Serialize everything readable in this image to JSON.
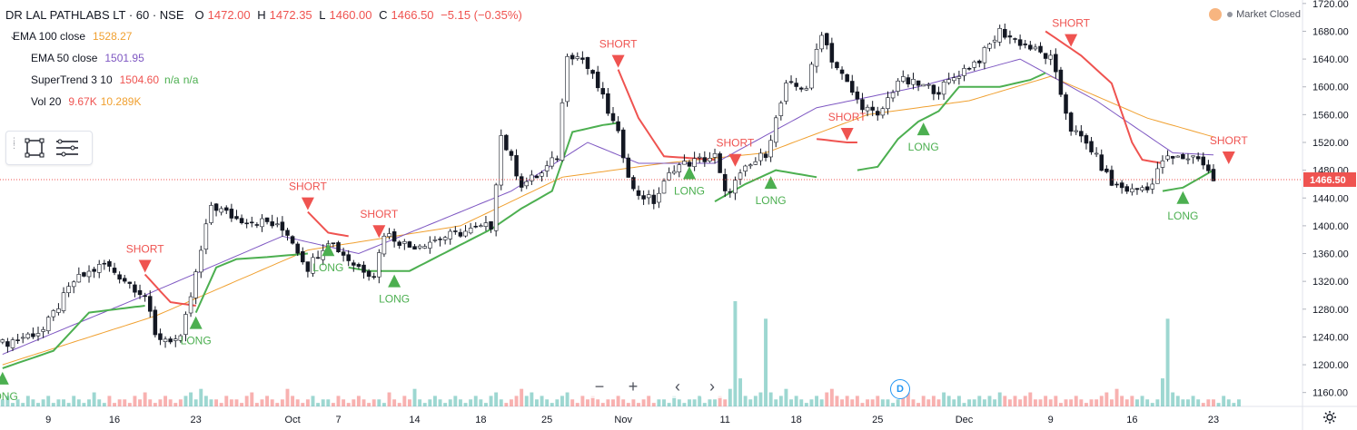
{
  "header": {
    "symbol": "DR LAL PATHLABS LT · 60 · NSE",
    "open_label": "O",
    "open": "1472.00",
    "high_label": "H",
    "high": "1472.35",
    "low_label": "L",
    "low": "1460.00",
    "close_label": "C",
    "close": "1466.50",
    "change": "−5.15 (−0.35%)"
  },
  "indicators": [
    {
      "name": "EMA 100 close",
      "value": "1528.27",
      "color": "#f0a030"
    },
    {
      "name": "EMA 50 close",
      "value": "1501.95",
      "color": "#7e57c2"
    },
    {
      "name": "SuperTrend 3 10",
      "value": "1504.60",
      "extra1": "n/a",
      "extra2": "n/a",
      "color": "#ef5350",
      "extra_color": "#4caf50"
    },
    {
      "name": "Vol 20",
      "value": "9.67K",
      "value2": "10.289K",
      "color": "#ef5350",
      "color2": "#f0a030"
    }
  ],
  "market_status": "Market Closed",
  "nav": {
    "zoom_out": "−",
    "zoom_in": "+",
    "scroll_left": "‹",
    "scroll_right": "›"
  },
  "d_badge": "D",
  "icons": {
    "settings": "gear-icon",
    "rect_tool": "rectangle-icon",
    "menu_tool": "menu-lines-icon",
    "chevron": "chevron-down-icon"
  },
  "colors": {
    "up": "#26a69a",
    "down": "#ef5350",
    "ema100": "#f0a030",
    "ema50": "#7e57c2",
    "st_long": "#4caf50",
    "st_short": "#ef5350"
  },
  "chart_data": {
    "type": "candlestick",
    "price_axis": {
      "ylim": [
        1140,
        1725
      ],
      "ticks": [
        1720,
        1680,
        1640,
        1600,
        1560,
        1520,
        1480,
        1440,
        1400,
        1360,
        1320,
        1280,
        1240,
        1200,
        1160
      ],
      "tick_labels": [
        "1720.00",
        "1680.00",
        "1640.00",
        "1600.00",
        "1560.00",
        "1520.00",
        "1480.00",
        "1440.00",
        "1400.00",
        "1360.00",
        "1320.00",
        "1280.00",
        "1240.00",
        "1200.00",
        "1160.00"
      ],
      "last_price": 1466.5,
      "last_price_label": "1466.50"
    },
    "x_axis": {
      "index_range": [
        0,
        255
      ],
      "tick_labels": [
        {
          "label": "9",
          "i": 9
        },
        {
          "label": "16",
          "i": 22
        },
        {
          "label": "23",
          "i": 38
        },
        {
          "label": "Oct",
          "i": 57
        },
        {
          "label": "7",
          "i": 66
        },
        {
          "label": "14",
          "i": 81
        },
        {
          "label": "18",
          "i": 94
        },
        {
          "label": "25",
          "i": 107
        },
        {
          "label": "Nov",
          "i": 122
        },
        {
          "label": "11",
          "i": 142
        },
        {
          "label": "18",
          "i": 156
        },
        {
          "label": "25",
          "i": 172
        },
        {
          "label": "Dec",
          "i": 189
        },
        {
          "label": "9",
          "i": 206
        },
        {
          "label": "16",
          "i": 222
        },
        {
          "label": "23",
          "i": 238
        }
      ]
    },
    "price_path_anchors": [
      [
        0,
        1230
      ],
      [
        8,
        1250
      ],
      [
        14,
        1320
      ],
      [
        20,
        1345
      ],
      [
        28,
        1300
      ],
      [
        30,
        1240
      ],
      [
        35,
        1235
      ],
      [
        38,
        1330
      ],
      [
        41,
        1430
      ],
      [
        46,
        1410
      ],
      [
        52,
        1405
      ],
      [
        56,
        1390
      ],
      [
        60,
        1340
      ],
      [
        64,
        1380
      ],
      [
        69,
        1345
      ],
      [
        73,
        1330
      ],
      [
        75,
        1390
      ],
      [
        80,
        1370
      ],
      [
        90,
        1390
      ],
      [
        96,
        1400
      ],
      [
        98,
        1530
      ],
      [
        102,
        1460
      ],
      [
        106,
        1475
      ],
      [
        109,
        1500
      ],
      [
        111,
        1650
      ],
      [
        114,
        1640
      ],
      [
        117,
        1600
      ],
      [
        121,
        1530
      ],
      [
        124,
        1450
      ],
      [
        128,
        1435
      ],
      [
        132,
        1485
      ],
      [
        140,
        1500
      ],
      [
        142,
        1445
      ],
      [
        146,
        1480
      ],
      [
        150,
        1505
      ],
      [
        154,
        1600
      ],
      [
        158,
        1600
      ],
      [
        161,
        1680
      ],
      [
        163,
        1640
      ],
      [
        168,
        1580
      ],
      [
        172,
        1555
      ],
      [
        176,
        1610
      ],
      [
        184,
        1595
      ],
      [
        188,
        1620
      ],
      [
        192,
        1640
      ],
      [
        196,
        1680
      ],
      [
        201,
        1660
      ],
      [
        206,
        1640
      ],
      [
        210,
        1540
      ],
      [
        214,
        1510
      ],
      [
        218,
        1460
      ],
      [
        222,
        1450
      ],
      [
        226,
        1460
      ],
      [
        228,
        1495
      ],
      [
        235,
        1500
      ],
      [
        238,
        1466
      ]
    ],
    "ema100_anchors": [
      [
        0,
        1200
      ],
      [
        30,
        1270
      ],
      [
        60,
        1365
      ],
      [
        90,
        1400
      ],
      [
        110,
        1470
      ],
      [
        130,
        1490
      ],
      [
        150,
        1505
      ],
      [
        170,
        1560
      ],
      [
        190,
        1580
      ],
      [
        206,
        1615
      ],
      [
        225,
        1555
      ],
      [
        238,
        1528
      ]
    ],
    "ema50_anchors": [
      [
        0,
        1215
      ],
      [
        28,
        1300
      ],
      [
        55,
        1385
      ],
      [
        70,
        1360
      ],
      [
        100,
        1450
      ],
      [
        115,
        1520
      ],
      [
        125,
        1490
      ],
      [
        140,
        1490
      ],
      [
        160,
        1570
      ],
      [
        180,
        1600
      ],
      [
        200,
        1640
      ],
      [
        215,
        1580
      ],
      [
        230,
        1505
      ],
      [
        238,
        1502
      ]
    ],
    "supertrend": [
      {
        "trend": "long",
        "anchors": [
          [
            0,
            1195
          ],
          [
            10,
            1220
          ],
          [
            17,
            1275
          ],
          [
            28,
            1285
          ]
        ]
      },
      {
        "trend": "short",
        "anchors": [
          [
            28,
            1330
          ],
          [
            33,
            1290
          ],
          [
            38,
            1285
          ]
        ]
      },
      {
        "trend": "long",
        "anchors": [
          [
            38,
            1275
          ],
          [
            42,
            1340
          ],
          [
            46,
            1352
          ],
          [
            52,
            1355
          ],
          [
            60,
            1360
          ]
        ]
      },
      {
        "trend": "short",
        "anchors": [
          [
            60,
            1420
          ],
          [
            64,
            1390
          ],
          [
            68,
            1385
          ]
        ]
      },
      {
        "trend": "long",
        "anchors": [
          [
            68,
            1340
          ],
          [
            72,
            1335
          ],
          [
            80,
            1335
          ],
          [
            88,
            1365
          ],
          [
            96,
            1395
          ],
          [
            102,
            1425
          ],
          [
            108,
            1450
          ],
          [
            112,
            1535
          ],
          [
            118,
            1545
          ],
          [
            121,
            1548
          ]
        ]
      },
      {
        "trend": "short",
        "anchors": [
          [
            121,
            1625
          ],
          [
            125,
            1555
          ],
          [
            130,
            1500
          ],
          [
            140,
            1495
          ]
        ]
      },
      {
        "trend": "long",
        "anchors": [
          [
            140,
            1435
          ],
          [
            146,
            1460
          ],
          [
            152,
            1480
          ],
          [
            160,
            1470
          ]
        ]
      },
      {
        "trend": "short",
        "anchors": [
          [
            160,
            1525
          ],
          [
            166,
            1520
          ],
          [
            168,
            1520
          ]
        ]
      },
      {
        "trend": "long",
        "anchors": [
          [
            168,
            1480
          ],
          [
            172,
            1485
          ],
          [
            176,
            1525
          ],
          [
            180,
            1550
          ],
          [
            184,
            1565
          ],
          [
            188,
            1600
          ],
          [
            196,
            1600
          ],
          [
            202,
            1610
          ],
          [
            205,
            1620
          ]
        ]
      },
      {
        "trend": "short",
        "anchors": [
          [
            205,
            1680
          ],
          [
            212,
            1645
          ],
          [
            218,
            1605
          ],
          [
            222,
            1520
          ],
          [
            224,
            1495
          ],
          [
            228,
            1490
          ]
        ]
      },
      {
        "trend": "long",
        "anchors": [
          [
            228,
            1450
          ],
          [
            232,
            1455
          ],
          [
            238,
            1480
          ]
        ]
      }
    ],
    "signals": [
      {
        "type": "LONG",
        "i": 0
      },
      {
        "type": "SHORT",
        "i": 28
      },
      {
        "type": "LONG",
        "i": 38
      },
      {
        "type": "SHORT",
        "i": 60
      },
      {
        "type": "LONG",
        "i": 64
      },
      {
        "type": "SHORT",
        "i": 74
      },
      {
        "type": "LONG",
        "i": 77
      },
      {
        "type": "SHORT",
        "i": 121
      },
      {
        "type": "LONG",
        "i": 135
      },
      {
        "type": "SHORT",
        "i": 144
      },
      {
        "type": "LONG",
        "i": 151
      },
      {
        "type": "SHORT",
        "i": 166
      },
      {
        "type": "LONG",
        "i": 181
      },
      {
        "type": "SHORT",
        "i": 210
      },
      {
        "type": "LONG",
        "i": 232
      },
      {
        "type": "SHORT",
        "i": 241
      }
    ],
    "volume": {
      "max": 10,
      "bars": [
        2,
        3,
        1,
        2,
        1,
        3,
        2,
        1,
        2,
        3,
        1,
        2,
        2,
        1,
        3,
        2,
        1,
        2,
        4,
        2,
        1,
        3,
        1,
        2,
        2,
        1,
        3,
        2,
        4,
        2,
        1,
        2,
        3,
        2,
        1,
        2,
        3,
        4,
        2,
        5,
        3,
        2,
        2,
        1,
        3,
        2,
        2,
        1,
        3,
        4,
        1,
        2,
        3,
        2,
        1,
        2,
        5,
        3,
        2,
        1,
        2,
        3,
        1,
        2,
        2,
        1,
        3,
        2,
        1,
        2,
        3,
        2,
        1,
        2,
        2,
        1,
        4,
        2,
        1,
        3,
        2,
        5,
        2,
        1,
        2,
        3,
        2,
        1,
        2,
        3,
        2,
        1,
        2,
        3,
        2,
        1,
        3,
        4,
        2,
        1,
        2,
        3,
        5,
        3,
        4,
        2,
        3,
        2,
        1,
        2,
        3,
        4,
        2,
        1,
        3,
        2,
        3,
        2,
        1,
        2,
        2,
        3,
        2,
        1,
        2,
        1,
        2,
        3,
        1,
        2,
        2,
        1,
        3,
        2,
        1,
        2,
        2,
        3,
        1,
        2,
        2,
        3,
        2,
        5,
        30,
        8,
        3,
        2,
        3,
        4,
        25,
        4,
        2,
        3,
        5,
        2,
        3,
        2,
        1,
        2,
        3,
        2,
        4,
        5,
        3,
        2,
        3,
        2,
        3,
        1,
        2,
        2,
        3,
        2,
        2,
        1,
        2,
        3,
        4,
        2,
        1,
        3,
        2,
        3,
        2,
        4,
        3,
        2,
        3,
        1,
        2,
        2,
        3,
        2,
        3,
        2,
        4,
        3,
        2,
        3,
        2,
        3,
        4,
        2,
        2,
        3,
        2,
        3,
        1,
        2,
        2,
        3,
        2,
        1,
        2,
        2,
        3,
        4,
        2,
        5,
        3,
        2,
        3,
        2,
        3,
        2,
        1,
        2,
        8,
        25,
        4,
        3,
        2,
        2,
        3,
        2,
        1,
        2,
        2,
        1,
        3,
        2,
        1,
        2
      ]
    }
  }
}
